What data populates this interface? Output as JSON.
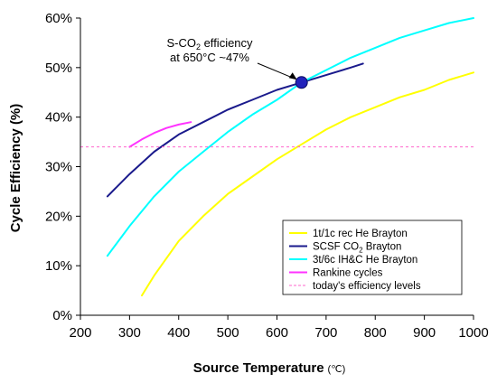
{
  "chart_data": {
    "type": "line",
    "title": "",
    "xlabel": "Source Temperature",
    "xlabel_unit": "(℃)",
    "ylabel": "Cycle Efficiency (%)",
    "xlim": [
      200,
      1000
    ],
    "ylim": [
      0,
      60
    ],
    "x_ticks": [
      200,
      300,
      400,
      500,
      600,
      700,
      800,
      900,
      1000
    ],
    "y_ticks": [
      0,
      10,
      20,
      30,
      40,
      50,
      60
    ],
    "x_tick_labels": [
      "200",
      "300",
      "400",
      "500",
      "600",
      "700",
      "800",
      "900",
      "1000"
    ],
    "y_tick_labels": [
      "0%",
      "10%",
      "20%",
      "30%",
      "40%",
      "50%",
      "60%"
    ],
    "grid": false,
    "legend_position": "bottom-right",
    "series": [
      {
        "name": "1t/1c rec He Brayton",
        "color": "#ffff00",
        "x": [
          325,
          350,
          400,
          450,
          500,
          550,
          600,
          650,
          700,
          750,
          800,
          850,
          900,
          950,
          1000
        ],
        "y": [
          4,
          8,
          15,
          20,
          24.5,
          28,
          31.5,
          34.5,
          37.5,
          40,
          42,
          44,
          45.5,
          47.5,
          49
        ]
      },
      {
        "name": "SCSF CO₂ Brayton",
        "color": "#1a1a8c",
        "x": [
          255,
          300,
          350,
          400,
          450,
          500,
          550,
          600,
          650,
          700,
          750,
          775
        ],
        "y": [
          24,
          28.5,
          33,
          36.5,
          39,
          41.5,
          43.5,
          45.5,
          47,
          48.5,
          50,
          50.8
        ]
      },
      {
        "name": "3t/6c IH&C He Brayton",
        "color": "#00ffff",
        "x": [
          255,
          300,
          350,
          400,
          450,
          500,
          550,
          600,
          650,
          700,
          750,
          800,
          850,
          900,
          950,
          1000
        ],
        "y": [
          12,
          18,
          24,
          29,
          33,
          37,
          40.5,
          43.5,
          47,
          49.5,
          52,
          54,
          56,
          57.5,
          59,
          60
        ]
      },
      {
        "name": "Rankine cycles",
        "color": "#ff33ff",
        "x": [
          300,
          325,
          350,
          375,
          400,
          425
        ],
        "y": [
          34,
          35.5,
          36.8,
          37.8,
          38.5,
          39
        ]
      }
    ],
    "reference_line": {
      "name": "today's efficiency levels",
      "y": 34,
      "color": "#ff66cc",
      "style": "dashed"
    },
    "annotation": {
      "line1_prefix": "S-CO",
      "line1_sub": "2",
      "line1_suffix": " efficiency",
      "line2": "at 650°C ~47%",
      "point_x": 650,
      "point_y": 47,
      "point_color": "#2222bb"
    },
    "legend": [
      {
        "label": "1t/1c rec He Brayton",
        "color": "#ffff00",
        "style": "solid"
      },
      {
        "label_prefix": "SCSF CO",
        "label_sub": "2",
        "label_suffix": " Brayton",
        "color": "#1a1a8c",
        "style": "solid"
      },
      {
        "label": "3t/6c IH&C He Brayton",
        "color": "#00ffff",
        "style": "solid"
      },
      {
        "label": "Rankine cycles",
        "color": "#ff33ff",
        "style": "solid"
      },
      {
        "label": "today's efficiency levels",
        "color": "#ff66cc",
        "style": "dashed"
      }
    ]
  }
}
